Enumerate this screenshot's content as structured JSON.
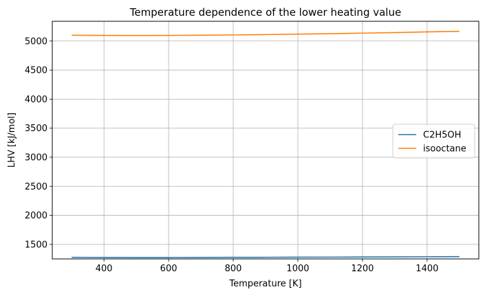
{
  "chart_data": {
    "type": "line",
    "title": "Temperature dependence of the lower heating value",
    "xlabel": "Temperature [K]",
    "ylabel": "LHV [kJ/mol]",
    "xlim": [
      240,
      1560
    ],
    "ylim": [
      1250,
      5340
    ],
    "xticks": [
      400,
      600,
      800,
      1000,
      1200,
      1400
    ],
    "yticks": [
      1500,
      2000,
      2500,
      3000,
      3500,
      4000,
      4500,
      5000
    ],
    "grid": true,
    "legend_position": "center-right",
    "x": [
      300,
      400,
      500,
      600,
      700,
      800,
      900,
      1000,
      1100,
      1200,
      1300,
      1400,
      1500
    ],
    "series": [
      {
        "name": "C2H5OH",
        "color": "#1f77b4",
        "values": [
          1277,
          1276,
          1275,
          1275,
          1276,
          1277,
          1278,
          1280,
          1281,
          1283,
          1285,
          1287,
          1289
        ]
      },
      {
        "name": "isooctane",
        "color": "#ff7f0e",
        "values": [
          5100,
          5097,
          5096,
          5097,
          5100,
          5105,
          5111,
          5119,
          5127,
          5136,
          5146,
          5157,
          5168
        ]
      }
    ]
  }
}
